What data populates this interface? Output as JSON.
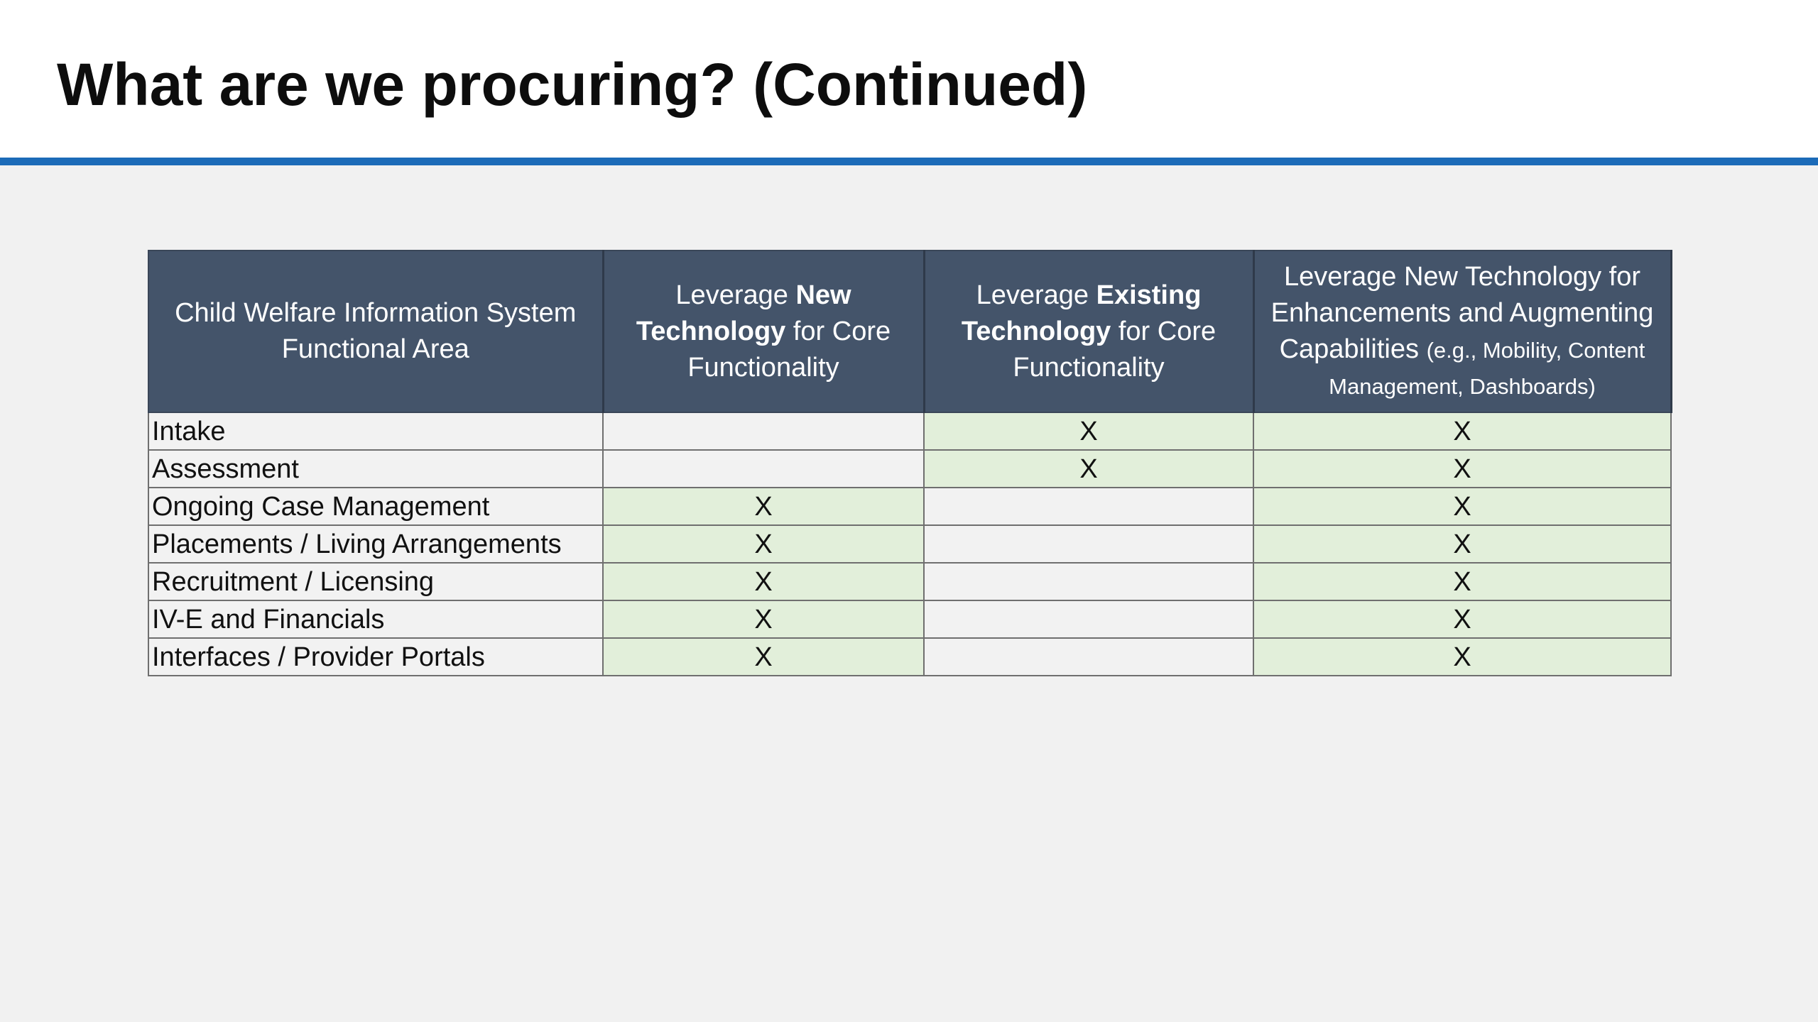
{
  "slide": {
    "title": "What are we procuring? (Continued)"
  },
  "colors": {
    "title_rule": "#1c6bb8",
    "header_fill": "#44546a",
    "marked_cell_fill": "#e2efda",
    "unmarked_cell_fill": "#f2f2f2"
  },
  "table": {
    "headers": {
      "area": "Child Welfare Information System Functional Area",
      "new_core": {
        "pre": "Leverage ",
        "bold": "New Technology",
        "post": " for Core Functionality"
      },
      "existing_core": {
        "pre": "Leverage ",
        "bold": "Existing Technology",
        "post": " for Core Functionality"
      },
      "enhancements": {
        "main": "Leverage New Technology for Enhancements and Augmenting Capabilities",
        "note": "(e.g., Mobility, Content Management, Dashboards)"
      }
    },
    "rows": [
      {
        "area": "Intake",
        "new_core": "",
        "existing_core": "X",
        "enhancements": "X"
      },
      {
        "area": "Assessment",
        "new_core": "",
        "existing_core": "X",
        "enhancements": "X"
      },
      {
        "area": "Ongoing Case Management",
        "new_core": "X",
        "existing_core": "",
        "enhancements": "X"
      },
      {
        "area": "Placements / Living Arrangements",
        "new_core": "X",
        "existing_core": "",
        "enhancements": "X"
      },
      {
        "area": "Recruitment / Licensing",
        "new_core": "X",
        "existing_core": "",
        "enhancements": "X"
      },
      {
        "area": "IV-E and Financials",
        "new_core": "X",
        "existing_core": "",
        "enhancements": "X"
      },
      {
        "area": "Interfaces / Provider Portals",
        "new_core": "X",
        "existing_core": "",
        "enhancements": "X"
      }
    ]
  }
}
